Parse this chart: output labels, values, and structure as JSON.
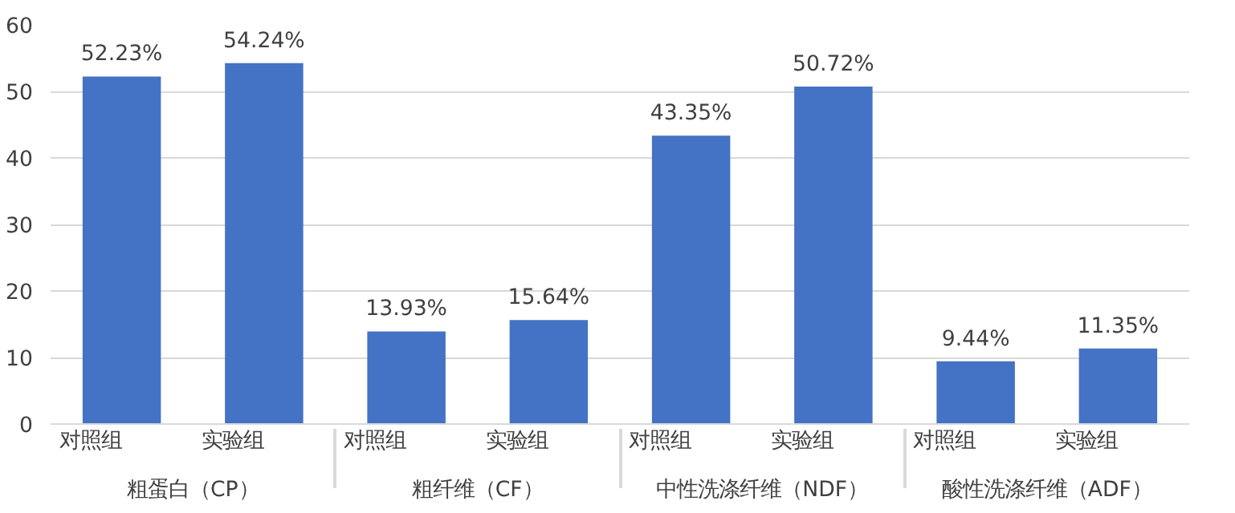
{
  "chart_data": {
    "type": "bar",
    "categories": [
      "对照组",
      "实验组",
      "对照组",
      "实验组",
      "对照组",
      "实验组",
      "对照组",
      "实验组"
    ],
    "values": [
      52.23,
      54.24,
      13.93,
      15.64,
      43.35,
      50.72,
      9.44,
      11.35
    ],
    "value_labels": [
      "52.23%",
      "54.24%",
      "13.93%",
      "15.64%",
      "43.35%",
      "50.72%",
      "9.44%",
      "11.35%"
    ],
    "annotations": [
      "粗蛋白（CP）",
      "粗纤维（CF）",
      "中性洗涤纤维（NDF）",
      "酸性洗涤纤维（ADF）"
    ],
    "color": "#4472c4",
    "ylim": [
      0,
      60
    ],
    "yticks": [
      0,
      10,
      20,
      30,
      40,
      50,
      60
    ],
    "grid": "y"
  }
}
